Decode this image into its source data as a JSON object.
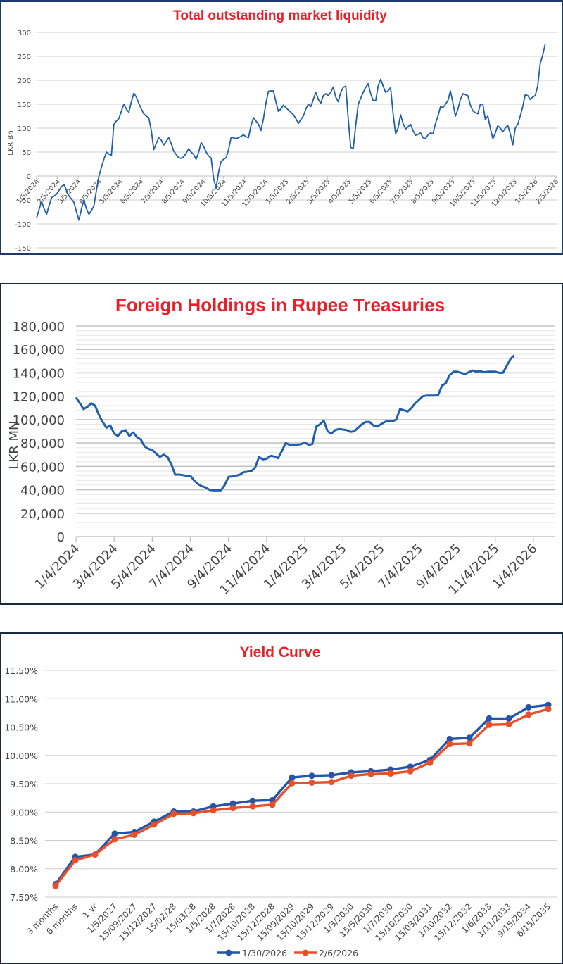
{
  "chart_data": [
    {
      "type": "line",
      "title": "Total outstanding market liquidity",
      "xlabel": "",
      "ylabel": "LKR Bn",
      "ylim": [
        -150,
        300
      ],
      "yticks": [
        300,
        250,
        200,
        150,
        100,
        50,
        0,
        -50,
        -100,
        -150
      ],
      "ytick_labels": [
        "300",
        "250",
        "200",
        "150",
        "100",
        "50",
        "0",
        "-50",
        "-100",
        "-150"
      ],
      "xtick_labels": [
        "1/5/2024",
        "2/5/2024",
        "3/5/2024",
        "4/5/2024",
        "5/5/2024",
        "6/5/2024",
        "7/5/2024",
        "8/5/2024",
        "9/5/2024",
        "10/5/2024",
        "11/5/2024",
        "12/5/2024",
        "1/5/2025",
        "2/5/2025",
        "3/5/2025",
        "4/5/2025",
        "5/5/2025",
        "6/5/2025",
        "7/5/2025",
        "8/5/2025",
        "9/5/2025",
        "10/5/2025",
        "11/5/2025",
        "12/5/2025",
        "1/5/2026",
        "2/5/2026"
      ],
      "grid": true,
      "line_color": "#1f5fad",
      "series": [
        {
          "name": "Total outstanding market liquidity",
          "x_months": [
            0,
            0.12,
            0.24,
            0.36,
            0.48,
            0.6,
            0.72,
            0.84,
            0.96,
            1.08,
            1.2,
            1.32,
            1.44,
            1.56,
            1.68,
            1.8,
            1.92,
            2.04,
            2.16,
            2.28,
            2.4,
            2.52,
            2.64,
            2.76,
            2.88,
            3.0,
            3.12,
            3.24,
            3.36,
            3.48,
            3.6,
            3.72,
            3.84,
            3.96,
            4.08,
            4.2,
            4.32,
            4.44,
            4.56,
            4.68,
            4.8,
            4.92,
            5.04,
            5.16,
            5.28,
            5.4,
            5.52,
            5.64,
            5.76,
            5.88,
            6.0,
            6.12,
            6.24,
            6.36,
            6.48,
            6.6,
            6.72,
            6.84,
            6.96,
            7.08,
            7.2,
            7.32,
            7.44,
            7.56,
            7.68,
            7.8,
            7.92,
            8.04,
            8.16,
            8.28,
            8.4,
            8.52,
            8.64,
            8.76,
            8.88,
            9.0,
            9.12,
            9.24,
            9.36,
            9.48,
            9.6,
            9.72,
            9.84,
            9.96,
            10.08,
            10.2,
            10.32,
            10.44,
            10.56,
            10.68,
            10.8,
            10.92,
            11.04,
            11.16,
            11.28,
            11.4,
            11.52,
            11.64,
            11.76,
            11.88,
            12.0,
            12.12,
            12.24,
            12.36,
            12.48,
            12.6,
            12.72,
            12.84,
            12.96,
            13.08,
            13.2,
            13.32,
            13.44,
            13.56,
            13.68,
            13.8,
            13.92,
            14.04,
            14.16,
            14.28,
            14.4,
            14.52,
            14.64,
            14.76,
            14.88,
            15.0,
            15.12,
            15.24,
            15.36,
            15.48,
            15.6,
            15.72,
            15.84,
            15.96,
            16.08,
            16.2,
            16.32,
            16.44,
            16.56,
            16.68,
            16.8,
            16.92,
            17.04,
            17.16,
            17.28,
            17.4,
            17.52,
            17.64,
            17.76,
            17.88,
            18.0,
            18.12,
            18.24,
            18.36,
            18.48,
            18.6,
            18.72,
            18.84,
            18.96,
            19.08,
            19.2,
            19.32,
            19.44,
            19.56,
            19.68,
            19.8,
            19.92,
            20.04,
            20.16,
            20.28,
            20.4,
            20.52,
            20.64,
            20.76,
            20.88,
            21.0,
            21.12,
            21.24,
            21.36,
            21.48,
            21.6,
            21.72,
            21.84,
            21.96,
            22.08,
            22.2,
            22.32,
            22.44,
            22.56,
            22.68,
            22.8,
            22.92,
            23.04,
            23.16,
            23.28,
            23.4,
            23.52,
            23.64,
            23.76,
            23.88,
            24.0,
            24.12,
            24.24,
            24.36,
            24.48,
            24.6,
            24.72,
            24.84,
            24.96,
            25.08
          ],
          "values": [
            -88,
            -70,
            -53,
            -68,
            -80,
            -62,
            -45,
            -42,
            -38,
            -30,
            -22,
            -18,
            -30,
            -42,
            -48,
            -55,
            -75,
            -92,
            -68,
            -50,
            -68,
            -80,
            -72,
            -62,
            -30,
            0,
            18,
            35,
            50,
            46,
            43,
            108,
            115,
            120,
            135,
            150,
            140,
            133,
            155,
            173,
            165,
            152,
            140,
            130,
            125,
            122,
            95,
            55,
            68,
            80,
            75,
            65,
            72,
            80,
            68,
            52,
            45,
            38,
            37,
            40,
            48,
            57,
            50,
            45,
            35,
            50,
            70,
            62,
            50,
            42,
            38,
            -5,
            -25,
            8,
            30,
            35,
            38,
            55,
            80,
            80,
            78,
            80,
            83,
            86,
            82,
            80,
            105,
            122,
            115,
            108,
            95,
            120,
            152,
            177,
            178,
            178,
            155,
            135,
            140,
            148,
            143,
            138,
            133,
            128,
            120,
            110,
            118,
            125,
            140,
            150,
            145,
            160,
            175,
            160,
            152,
            168,
            172,
            168,
            175,
            186,
            165,
            155,
            175,
            185,
            188,
            120,
            60,
            57,
            105,
            150,
            162,
            175,
            185,
            193,
            172,
            158,
            157,
            188,
            202,
            188,
            175,
            178,
            185,
            130,
            88,
            100,
            128,
            110,
            98,
            103,
            108,
            95,
            85,
            87,
            90,
            80,
            78,
            86,
            90,
            88,
            110,
            125,
            145,
            143,
            150,
            158,
            178,
            152,
            125,
            140,
            160,
            172,
            170,
            168,
            148,
            136,
            132,
            130,
            150,
            150,
            118,
            125,
            100,
            78,
            90,
            105,
            100,
            92,
            100,
            106,
            88,
            65,
            100,
            108,
            125,
            145,
            170,
            168,
            160,
            165,
            168,
            188,
            235,
            252,
            275
          ]
        }
      ]
    },
    {
      "type": "line",
      "title": "Foreign Holdings in Rupee Treasuries",
      "xlabel": "",
      "ylabel": "LKR MN",
      "ylim": [
        0,
        180000
      ],
      "yticks": [
        0,
        20000,
        40000,
        60000,
        80000,
        100000,
        120000,
        140000,
        160000,
        180000
      ],
      "ytick_labels": [
        "0",
        "20,000",
        "40,000",
        "60,000",
        "80,000",
        "100,000",
        "120,000",
        "140,000",
        "160,000",
        "180,000"
      ],
      "xtick_labels": [
        "1/4/2024",
        "3/4/2024",
        "5/4/2024",
        "7/4/2024",
        "9/4/2024",
        "11/4/2024",
        "1/4/2025",
        "3/4/2025",
        "5/4/2025",
        "7/4/2025",
        "9/4/2025",
        "11/4/2025",
        "1/4/2026"
      ],
      "grid": true,
      "line_color": "#1f5fad",
      "series": [
        {
          "name": "Foreign Holdings",
          "x_months": [
            0,
            0.2,
            0.4,
            0.6,
            0.8,
            1.0,
            1.2,
            1.4,
            1.6,
            1.8,
            2.0,
            2.2,
            2.4,
            2.6,
            2.8,
            3.0,
            3.2,
            3.4,
            3.6,
            3.8,
            4.0,
            4.2,
            4.4,
            4.6,
            4.8,
            5.0,
            5.2,
            5.4,
            5.6,
            5.8,
            6.0,
            6.2,
            6.4,
            6.6,
            6.8,
            7.0,
            7.2,
            7.4,
            7.6,
            7.8,
            8.0,
            8.2,
            8.4,
            8.6,
            8.8,
            9.0,
            9.2,
            9.4,
            9.6,
            9.8,
            10.0,
            10.2,
            10.4,
            10.6,
            10.8,
            11.0,
            11.2,
            11.4,
            11.6,
            11.8,
            12.0,
            12.2,
            12.4,
            12.6,
            12.8,
            13.0,
            13.2,
            13.4,
            13.6,
            13.8,
            14.0,
            14.2,
            14.4,
            14.6,
            14.8,
            15.0,
            15.2,
            15.4,
            15.6,
            15.8,
            16.0,
            16.2,
            16.4,
            16.6,
            16.8,
            17.0,
            17.2,
            17.4,
            17.6,
            17.8,
            18.0,
            18.2,
            18.4,
            18.6,
            18.8,
            19.0,
            19.2,
            19.4,
            19.6,
            19.8,
            20.0,
            20.2,
            20.4,
            20.6,
            20.8,
            21.0,
            21.2,
            21.4,
            21.6,
            21.8,
            22.0,
            22.2,
            22.4,
            22.6,
            22.8,
            23.0,
            23.2,
            23.4,
            23.6,
            23.8,
            24.0,
            24.2,
            24.4,
            24.6
          ],
          "values": [
            119000,
            114000,
            109000,
            111000,
            114000,
            112000,
            104000,
            98000,
            93000,
            95000,
            88000,
            86000,
            90000,
            91000,
            86000,
            89000,
            85000,
            83000,
            77000,
            75000,
            74000,
            71000,
            68000,
            70000,
            68000,
            62000,
            53000,
            53000,
            52500,
            52000,
            52000,
            48000,
            45000,
            43000,
            42000,
            40000,
            39500,
            39500,
            39500,
            44000,
            51000,
            51500,
            52000,
            53000,
            55000,
            55500,
            56000,
            59000,
            68000,
            66000,
            66500,
            69000,
            68500,
            67000,
            73000,
            80000,
            78500,
            78500,
            78500,
            79000,
            80500,
            78500,
            79000,
            94000,
            96000,
            99000,
            90000,
            88000,
            91000,
            92000,
            91500,
            91000,
            89500,
            90000,
            93000,
            96000,
            98000,
            98000,
            95000,
            94000,
            96000,
            98000,
            99000,
            98500,
            100000,
            109000,
            108000,
            107000,
            110000,
            114000,
            117000,
            120000,
            120500,
            120500,
            120500,
            121000,
            129000,
            131000,
            138000,
            141000,
            141000,
            140000,
            139000,
            140500,
            142000,
            141000,
            141500,
            140500,
            141000,
            141000,
            141000,
            140000,
            140000,
            146000,
            152000,
            155000
          ],
          "last_month_value_index_note": ""
        }
      ]
    },
    {
      "type": "line",
      "title": "Yield Curve",
      "xlabel": "",
      "ylabel": "",
      "ylim": [
        7.5,
        11.5
      ],
      "yticks": [
        7.5,
        8.0,
        8.5,
        9.0,
        9.5,
        10.0,
        10.5,
        11.0,
        11.5
      ],
      "ytick_labels": [
        "7.50%",
        "8.00%",
        "8.50%",
        "9.00%",
        "9.50%",
        "10.00%",
        "10.50%",
        "11.00%",
        "11.50%"
      ],
      "categories": [
        "3 months",
        "6 months",
        "1 yr",
        "1/5/2027",
        "15/09/2027",
        "15/12/2027",
        "15/02/28",
        "15/03/28",
        "1/5/2028",
        "1/7/2028",
        "15/10/2028",
        "15/12/2028",
        "15/09/2029",
        "15/10/2029",
        "15/12/2029",
        "1/3/2030",
        "15/5/2030",
        "1/7/2030",
        "15/10/2030",
        "15/03/2031",
        "1/10/2032",
        "15/12/2032",
        "1/6/2033",
        "1/11/2033",
        "9/15/2034",
        "6/15/2035"
      ],
      "grid": true,
      "legend": "bottom",
      "series": [
        {
          "name": "1/30/2026",
          "color": "#2554a8",
          "values": [
            7.73,
            8.21,
            8.25,
            8.62,
            8.65,
            8.83,
            9.01,
            9.01,
            9.1,
            9.15,
            9.2,
            9.21,
            9.61,
            9.64,
            9.65,
            9.7,
            9.72,
            9.75,
            9.8,
            9.92,
            10.29,
            10.31,
            10.65,
            10.65,
            10.85,
            10.89
          ]
        },
        {
          "name": "2/6/2026",
          "color": "#e8502a",
          "values": [
            7.7,
            8.15,
            8.25,
            8.52,
            8.6,
            8.78,
            8.97,
            8.98,
            9.03,
            9.07,
            9.1,
            9.13,
            9.51,
            9.52,
            9.53,
            9.64,
            9.67,
            9.68,
            9.72,
            9.87,
            10.2,
            10.21,
            10.54,
            10.55,
            10.72,
            10.82
          ]
        }
      ]
    }
  ]
}
